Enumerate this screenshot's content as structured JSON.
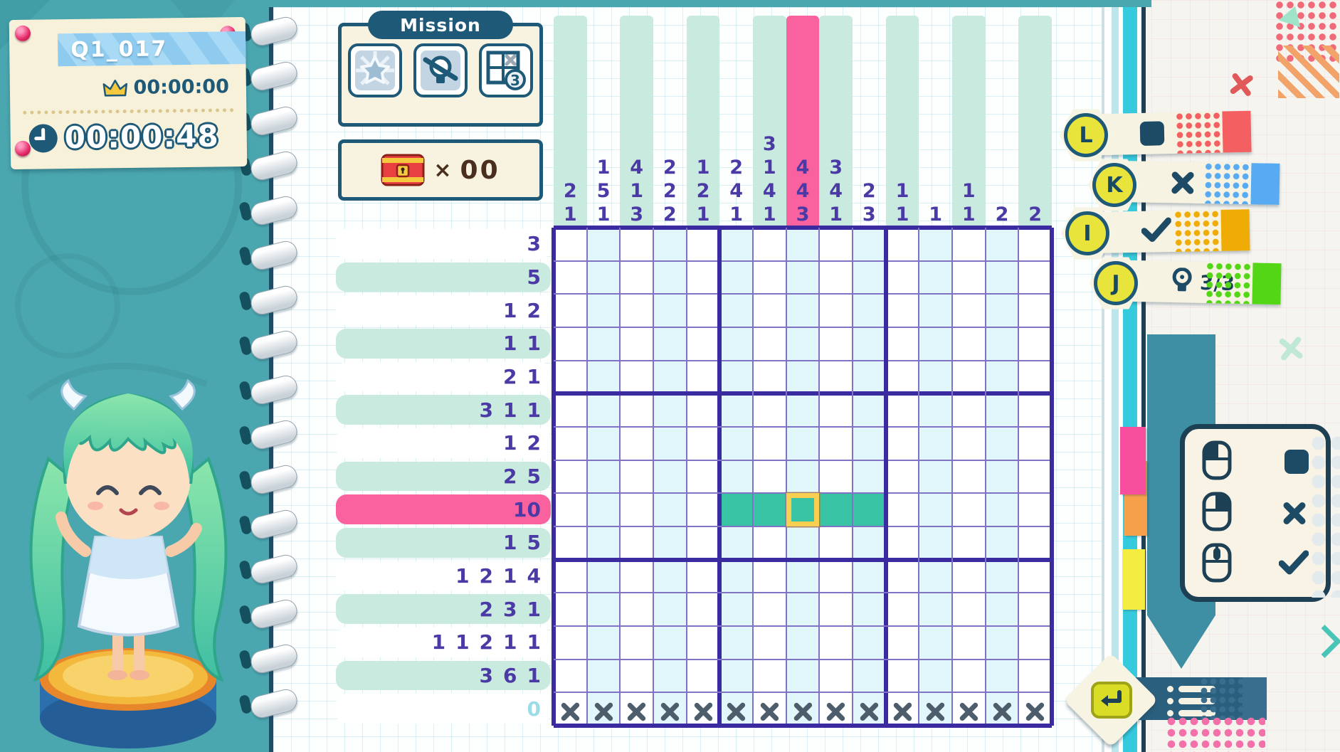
{
  "hud": {
    "puzzle_id": "Q1_017",
    "best_time": "00:00:00",
    "current_time": "00:00:48"
  },
  "mission": {
    "title": "Mission",
    "icons": [
      {
        "name": "star-clear-mission-icon"
      },
      {
        "name": "no-hint-mission-icon"
      },
      {
        "name": "limited-mistakes-mission-icon",
        "badge": "3"
      }
    ]
  },
  "treasure": {
    "multiplier": "×",
    "count": "00"
  },
  "board": {
    "size": 15,
    "col_hints": [
      [
        2,
        1
      ],
      [
        1,
        5,
        1
      ],
      [
        4,
        1,
        3
      ],
      [
        2,
        2,
        2
      ],
      [
        1,
        2,
        1
      ],
      [
        2,
        4,
        1
      ],
      [
        3,
        1,
        4,
        1
      ],
      [
        4,
        4,
        3
      ],
      [
        3,
        4,
        1
      ],
      [
        2,
        3
      ],
      [
        1,
        1
      ],
      [
        1
      ],
      [
        1,
        1
      ],
      [
        2
      ],
      [
        2
      ]
    ],
    "row_hints": [
      [
        3
      ],
      [
        5
      ],
      [
        1,
        2
      ],
      [
        1,
        1
      ],
      [
        2,
        1
      ],
      [
        3,
        1,
        1
      ],
      [
        1,
        2
      ],
      [
        2,
        5
      ],
      [
        10
      ],
      [
        1,
        5
      ],
      [
        1,
        2,
        1,
        4
      ],
      [
        2,
        3,
        1
      ],
      [
        1,
        1,
        2,
        1,
        1
      ],
      [
        3,
        6,
        1
      ],
      [
        0
      ]
    ],
    "active_col": 8,
    "active_row": 9,
    "filled": {
      "row": 9,
      "cols": [
        6,
        7,
        8,
        9,
        10
      ]
    },
    "cursor": {
      "row": 9,
      "col": 8
    },
    "crossed_row": 15,
    "completed_row_hint": 15
  },
  "key_legend": [
    {
      "key": "L",
      "icon": "square",
      "label": ""
    },
    {
      "key": "K",
      "icon": "cross",
      "label": ""
    },
    {
      "key": "I",
      "icon": "check",
      "label": ""
    },
    {
      "key": "J",
      "icon": "bulb",
      "label": "3/3"
    }
  ],
  "mouse_legend": [
    {
      "button": "left",
      "icon": "square"
    },
    {
      "button": "right",
      "icon": "cross"
    },
    {
      "button": "middle",
      "icon": "check"
    }
  ],
  "colors": {
    "accent_pink": "#F9619F",
    "fill_teal": "#38C3A4",
    "cursor_yellow": "#F9CF52",
    "hint_indigo": "#4B3AA5",
    "mint_stripe": "#C9EADE",
    "grid_band_cyan": "#E2F7FB",
    "ribbon_red": "#F45F62",
    "ribbon_blue": "#58ABF2",
    "ribbon_amber": "#EFAC07",
    "ribbon_green": "#52D616",
    "completed_hint": "#9CDCE8",
    "x_mark": "#4E5D6B"
  }
}
